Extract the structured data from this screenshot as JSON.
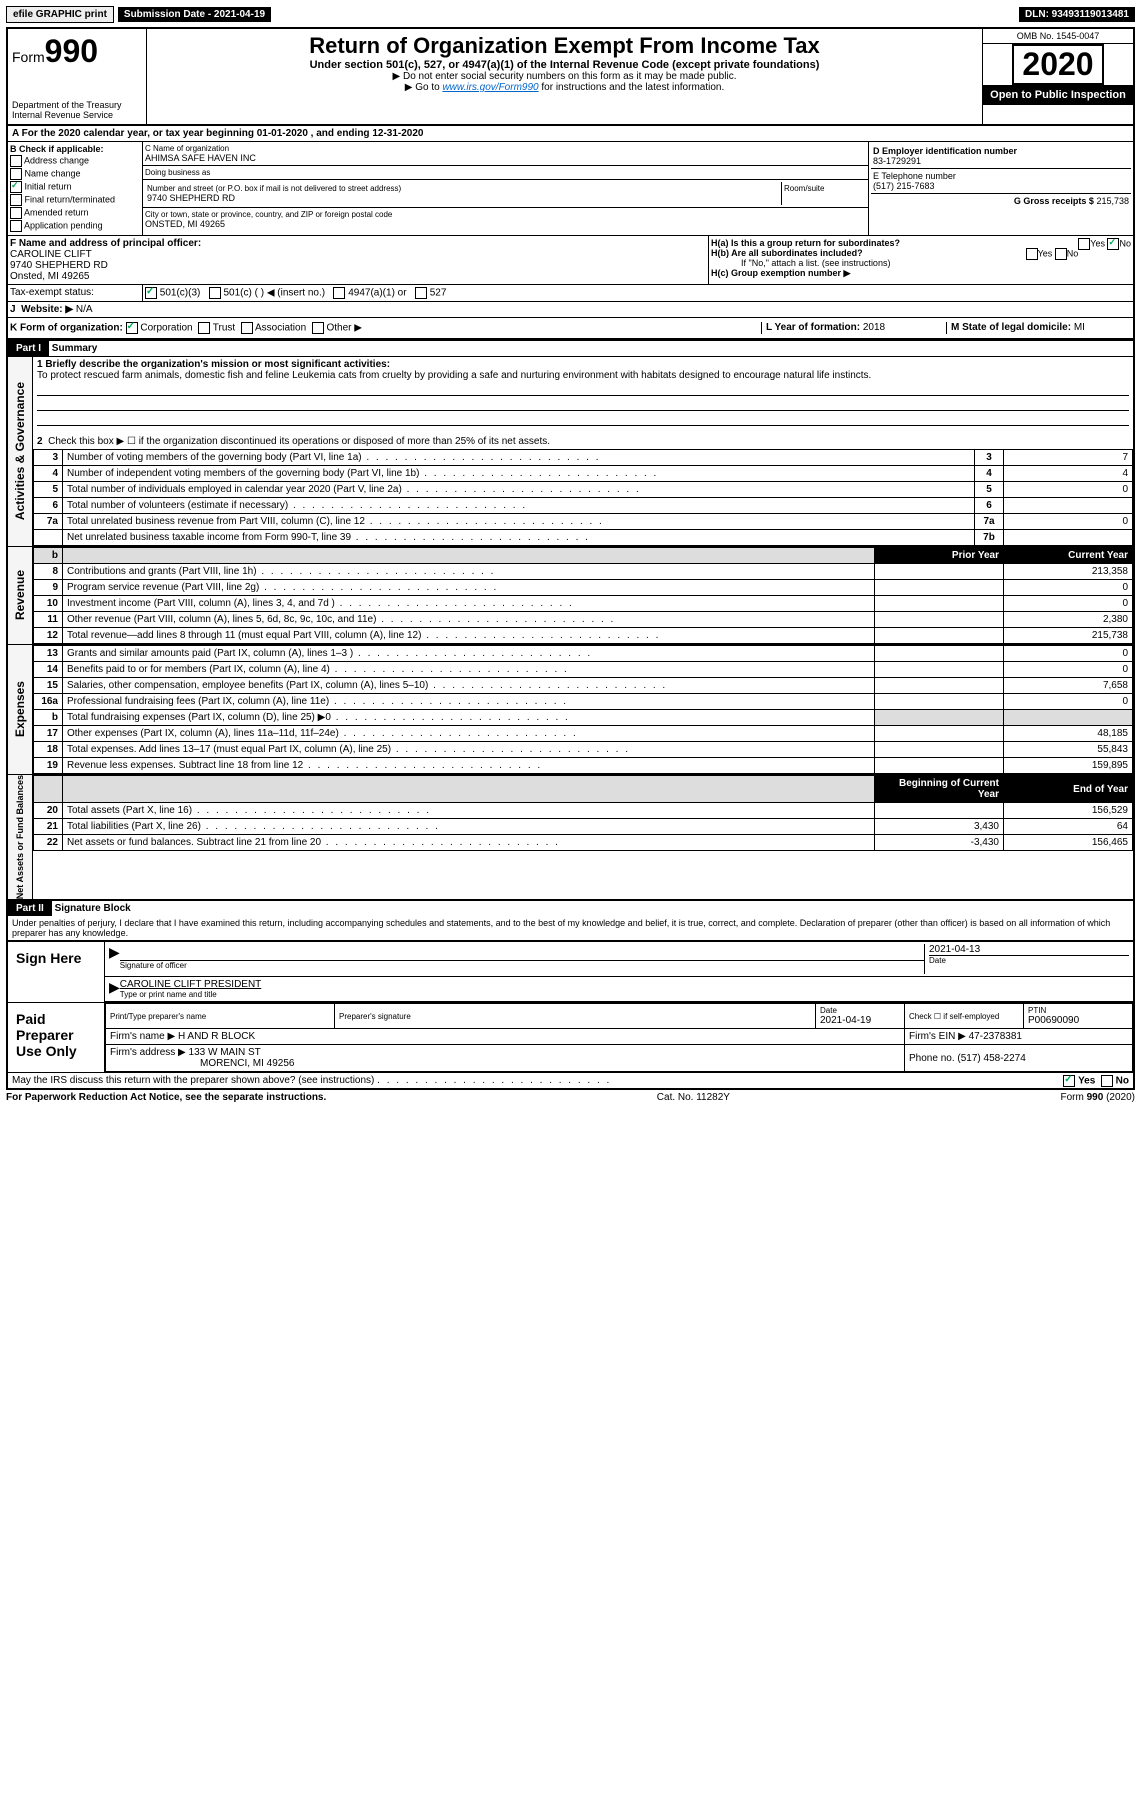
{
  "top": {
    "efile": "efile GRAPHIC print",
    "submission": "Submission Date - 2021-04-19",
    "dln": "DLN: 93493119013481"
  },
  "header": {
    "form_label": "Form",
    "form_num": "990",
    "dept": "Department of the Treasury\nInternal Revenue Service",
    "title": "Return of Organization Exempt From Income Tax",
    "subtitle": "Under section 501(c), 527, or 4947(a)(1) of the Internal Revenue Code (except private foundations)",
    "instr1": "▶ Do not enter social security numbers on this form as it may be made public.",
    "instr2_pre": "▶ Go to ",
    "instr2_link": "www.irs.gov/Form990",
    "instr2_post": " for instructions and the latest information.",
    "omb": "OMB No. 1545-0047",
    "year": "2020",
    "inspection": "Open to Public Inspection"
  },
  "row_a": "A For the 2020 calendar year, or tax year beginning 01-01-2020     , and ending 12-31-2020",
  "section_b": {
    "title": "B Check if applicable:",
    "items": [
      "Address change",
      "Name change",
      "Initial return",
      "Final return/terminated",
      "Amended return",
      "Application pending"
    ],
    "checked_idx": 2
  },
  "section_c": {
    "name_label": "C Name of organization",
    "name": "AHIMSA SAFE HAVEN INC",
    "dba_label": "Doing business as",
    "dba": "",
    "street_label": "Number and street (or P.O. box if mail is not delivered to street address)",
    "room_label": "Room/suite",
    "street": "9740 SHEPHERD RD",
    "city_label": "City or town, state or province, country, and ZIP or foreign postal code",
    "city": "ONSTED, MI  49265"
  },
  "section_d": {
    "ein_label": "D Employer identification number",
    "ein": "83-1729291",
    "phone_label": "E Telephone number",
    "phone": "(517) 215-7683",
    "gross_label": "G Gross receipts $",
    "gross": "215,738"
  },
  "officer": {
    "label": "F  Name and address of principal officer:",
    "name": "CAROLINE CLIFT",
    "street": "9740 SHEPHERD RD",
    "city": "Onsted, MI  49265"
  },
  "section_h": {
    "ha": "H(a)  Is this a group return for subordinates?",
    "hb": "H(b)  Are all subordinates included?",
    "hb_note": "If \"No,\" attach a list. (see instructions)",
    "hc": "H(c)  Group exemption number ▶",
    "ha_no_checked": true
  },
  "tax_status": {
    "label": "Tax-exempt status:",
    "opts": [
      "501(c)(3)",
      "501(c) (  ) ◀ (insert no.)",
      "4947(a)(1) or",
      "527"
    ],
    "checked_idx": 0
  },
  "website": {
    "label_j": "J",
    "label": "Website: ▶",
    "value": "N/A"
  },
  "row_k": {
    "label": "K Form of organization:",
    "opts": [
      "Corporation",
      "Trust",
      "Association",
      "Other ▶"
    ],
    "checked_idx": 0,
    "l_label": "L Year of formation:",
    "l_val": "2018",
    "m_label": "M State of legal domicile:",
    "m_val": "MI"
  },
  "part1": {
    "header": "Part I",
    "title": "Summary",
    "line1_label": "1  Briefly describe the organization's mission or most significant activities:",
    "mission": "To protect rescued farm animals, domestic fish and feline Leukemia cats from cruelty by providing a safe and nurturing environment with habitats designed to encourage natural life instincts.",
    "line2": "Check this box ▶ ☐  if the organization discontinued its operations or disposed of more than 25% of its net assets.",
    "governance_label": "Activities & Governance",
    "revenue_label": "Revenue",
    "expenses_label": "Expenses",
    "netassets_label": "Net Assets or Fund Balances",
    "gov_lines": [
      {
        "n": "3",
        "desc": "Number of voting members of the governing body (Part VI, line 1a)",
        "box": "3",
        "val": "7"
      },
      {
        "n": "4",
        "desc": "Number of independent voting members of the governing body (Part VI, line 1b)",
        "box": "4",
        "val": "4"
      },
      {
        "n": "5",
        "desc": "Total number of individuals employed in calendar year 2020 (Part V, line 2a)",
        "box": "5",
        "val": "0"
      },
      {
        "n": "6",
        "desc": "Total number of volunteers (estimate if necessary)",
        "box": "6",
        "val": ""
      },
      {
        "n": "7a",
        "desc": "Total unrelated business revenue from Part VIII, column (C), line 12",
        "box": "7a",
        "val": "0"
      },
      {
        "n": "",
        "desc": "Net unrelated business taxable income from Form 990-T, line 39",
        "box": "7b",
        "val": ""
      }
    ],
    "prior_header": "Prior Year",
    "current_header": "Current Year",
    "rev_lines": [
      {
        "n": "8",
        "desc": "Contributions and grants (Part VIII, line 1h)",
        "prior": "",
        "val": "213,358"
      },
      {
        "n": "9",
        "desc": "Program service revenue (Part VIII, line 2g)",
        "prior": "",
        "val": "0"
      },
      {
        "n": "10",
        "desc": "Investment income (Part VIII, column (A), lines 3, 4, and 7d )",
        "prior": "",
        "val": "0"
      },
      {
        "n": "11",
        "desc": "Other revenue (Part VIII, column (A), lines 5, 6d, 8c, 9c, 10c, and 11e)",
        "prior": "",
        "val": "2,380"
      },
      {
        "n": "12",
        "desc": "Total revenue—add lines 8 through 11 (must equal Part VIII, column (A), line 12)",
        "prior": "",
        "val": "215,738"
      }
    ],
    "exp_lines": [
      {
        "n": "13",
        "desc": "Grants and similar amounts paid (Part IX, column (A), lines 1–3 )",
        "prior": "",
        "val": "0"
      },
      {
        "n": "14",
        "desc": "Benefits paid to or for members (Part IX, column (A), line 4)",
        "prior": "",
        "val": "0"
      },
      {
        "n": "15",
        "desc": "Salaries, other compensation, employee benefits (Part IX, column (A), lines 5–10)",
        "prior": "",
        "val": "7,658"
      },
      {
        "n": "16a",
        "desc": "Professional fundraising fees (Part IX, column (A), line 11e)",
        "prior": "",
        "val": "0"
      },
      {
        "n": "b",
        "desc": "Total fundraising expenses (Part IX, column (D), line 25) ▶0",
        "prior": "shaded",
        "val": "shaded"
      },
      {
        "n": "17",
        "desc": "Other expenses (Part IX, column (A), lines 11a–11d, 11f–24e)",
        "prior": "",
        "val": "48,185"
      },
      {
        "n": "18",
        "desc": "Total expenses. Add lines 13–17 (must equal Part IX, column (A), line 25)",
        "prior": "",
        "val": "55,843"
      },
      {
        "n": "19",
        "desc": "Revenue less expenses. Subtract line 18 from line 12",
        "prior": "",
        "val": "159,895"
      }
    ],
    "begin_header": "Beginning of Current Year",
    "end_header": "End of Year",
    "net_lines": [
      {
        "n": "20",
        "desc": "Total assets (Part X, line 16)",
        "prior": "",
        "val": "156,529"
      },
      {
        "n": "21",
        "desc": "Total liabilities (Part X, line 26)",
        "prior": "3,430",
        "val": "64"
      },
      {
        "n": "22",
        "desc": "Net assets or fund balances. Subtract line 21 from line 20",
        "prior": "-3,430",
        "val": "156,465"
      }
    ]
  },
  "part2": {
    "header": "Part II",
    "title": "Signature Block",
    "declaration": "Under penalties of perjury, I declare that I have examined this return, including accompanying schedules and statements, and to the best of my knowledge and belief, it is true, correct, and complete. Declaration of preparer (other than officer) is based on all information of which preparer has any knowledge.",
    "sign_here": "Sign Here",
    "sig_officer_label": "Signature of officer",
    "sig_date_label": "Date",
    "sig_date": "2021-04-13",
    "officer_name": "CAROLINE CLIFT PRESIDENT",
    "officer_title_label": "Type or print name and title",
    "paid": "Paid Preparer Use Only",
    "prep_name_label": "Print/Type preparer's name",
    "prep_sig_label": "Preparer's signature",
    "prep_date_label": "Date",
    "prep_date": "2021-04-19",
    "prep_check_label": "Check ☐ if self-employed",
    "ptin_label": "PTIN",
    "ptin": "P00690090",
    "firm_name_label": "Firm's name    ▶",
    "firm_name": "H AND R BLOCK",
    "firm_ein_label": "Firm's EIN ▶",
    "firm_ein": "47-2378381",
    "firm_addr_label": "Firm's address ▶",
    "firm_addr": "133 W MAIN ST",
    "firm_city": "MORENCI, MI  49256",
    "firm_phone_label": "Phone no.",
    "firm_phone": "(517) 458-2274",
    "discuss": "May the IRS discuss this return with the preparer shown above? (see instructions)",
    "yes": "Yes",
    "no": "No"
  },
  "footer": {
    "left": "For Paperwork Reduction Act Notice, see the separate instructions.",
    "center": "Cat. No. 11282Y",
    "right": "Form 990 (2020)"
  }
}
